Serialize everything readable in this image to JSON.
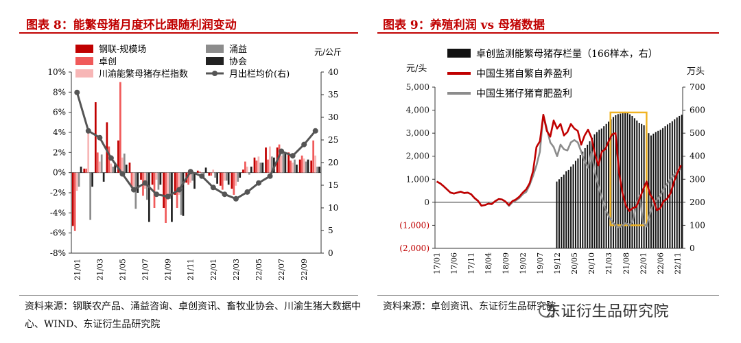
{
  "left_title": "图表 8：能繁母猪月度环比跟随利润变动",
  "right_title": "图表 9：养殖利润 vs 母猪数据",
  "left_source": "资料来源：钢联农产品、涌益咨询、卓创资讯、畜牧业协会、川渝生猪大数据中心、WIND、东证衍生品研究院",
  "right_source": "资料来源：卓创资讯、东证衍生品研究院",
  "watermark": "东证衍生品研究院",
  "colors": {
    "gl": "#c00000",
    "zc": "#f05a5a",
    "cy": "#f7b6b6",
    "yy": "#8c8c8c",
    "xh": "#222222",
    "price": "#555555",
    "zf": "#c00000",
    "zz": "#8c8c8c",
    "inv": "#111111",
    "box": "#f0b323"
  },
  "chart_data": [
    {
      "type": "bar+line",
      "title": "图表 8：能繁母猪月度环比跟随利润变动",
      "categories": [
        "21/01",
        "21/02",
        "21/03",
        "21/04",
        "21/05",
        "21/06",
        "21/07",
        "21/08",
        "21/09",
        "21/10",
        "21/11",
        "21/12",
        "22/01",
        "22/02",
        "22/03",
        "22/04",
        "22/05",
        "22/06",
        "22/07",
        "22/08",
        "22/09",
        "22/10"
      ],
      "x_tick_labels": [
        "21/01",
        "21/03",
        "21/05",
        "21/07",
        "21/09",
        "21/11",
        "22/01",
        "22/03",
        "22/05",
        "22/07",
        "22/09"
      ],
      "ylabel_left": "",
      "ylim_left": [
        -8,
        10
      ],
      "yticks_left": [
        "10%",
        "8%",
        "6%",
        "4%",
        "2%",
        "0%",
        "-2%",
        "-4%",
        "-6%",
        "-8%"
      ],
      "ylabel_right": "元/公斤",
      "ylim_right": [
        0,
        40
      ],
      "yticks_right": [
        "40",
        "35",
        "30",
        "25",
        "20",
        "15",
        "10",
        "5",
        "0"
      ],
      "series": [
        {
          "name": "钢联-规模场",
          "kind": "bar",
          "values": [
            -5.3,
            0.4,
            7.0,
            5.0,
            3.2,
            1.0,
            -0.7,
            -1.2,
            -3.5,
            -2.2,
            -1.0,
            0.2,
            -0.3,
            -1.3,
            -1.6,
            0.3,
            1.5,
            2.5,
            2.5,
            2.0,
            1.3,
            1.2
          ]
        },
        {
          "name": "卓创",
          "kind": "bar",
          "values": [
            -5.8,
            0.4,
            2.0,
            2.6,
            9.0,
            -1.5,
            -2.3,
            -3.5,
            -5.0,
            -3.5,
            -1.2,
            0.1,
            -0.3,
            -1.7,
            -2.2,
            1.1,
            1.2,
            1.3,
            2.8,
            1.2,
            1.7,
            3.2
          ]
        },
        {
          "name": "川渝能繁母猪存栏指数",
          "kind": "bar",
          "values": [
            -1.8,
            4.1,
            1.1,
            0.9,
            1.5,
            -1.4,
            -1.6,
            -0.7,
            -2.7,
            -2.2,
            -1.0,
            0.0,
            0.3,
            -0.8,
            -1.3,
            0.6,
            1.6,
            2.6,
            1.7,
            1.0,
            1.4,
            1.7
          ]
        },
        {
          "name": "涌益",
          "kind": "bar",
          "values": [
            -1.4,
            -4.7,
            1.8,
            0.6,
            1.9,
            -3.6,
            -2.7,
            -1.7,
            -2.6,
            -4.2,
            -0.8,
            -0.2,
            -0.5,
            -0.8,
            -0.9,
            -0.2,
            1.0,
            1.6,
            2.1,
            1.3,
            1.1,
            0.6
          ]
        },
        {
          "name": "协会",
          "kind": "bar",
          "values": [
            0.6,
            -1.4,
            -0.9,
            1.0,
            0.8,
            -2.0,
            -4.9,
            -1.2,
            -4.9,
            -4.3,
            -1.6,
            0.5,
            -1.1,
            -1.2,
            -0.5,
            0.6,
            1.0,
            1.5,
            2.0,
            0.8,
            1.3,
            0.6
          ]
        },
        {
          "name": "月出栏均价(右)",
          "kind": "line",
          "axis": "right",
          "values": [
            35.5,
            27.0,
            25.5,
            21.0,
            17.5,
            14.0,
            15.5,
            13.0,
            12.5,
            14.0,
            18.0,
            17.0,
            14.5,
            13.0,
            12.0,
            13.5,
            15.5,
            17.0,
            22.5,
            21.5,
            24.0,
            27.0
          ]
        }
      ]
    },
    {
      "type": "bar+line",
      "title": "图表 9：养殖利润 vs 母猪数据",
      "x_tick_labels": [
        "17/01",
        "17/06",
        "17/11",
        "18/04",
        "18/09",
        "19/02",
        "19/07",
        "19/12",
        "20/05",
        "20/10",
        "21/03",
        "21/08",
        "22/01",
        "22/06",
        "22/11"
      ],
      "ylabel_left": "元/头",
      "ylim_left": [
        -2000,
        5000
      ],
      "yticks_left": [
        "5,000",
        "4,000",
        "3,000",
        "2,000",
        "1,000",
        "0",
        "(1,000)",
        "(2,000)"
      ],
      "ylabel_right": "万头",
      "ylim_right": [
        0,
        700
      ],
      "yticks_right": [
        "700",
        "600",
        "500",
        "400",
        "300",
        "200",
        "100",
        "0"
      ],
      "highlight_box": {
        "x_from": "21/06",
        "x_to": "22/04",
        "y_from": 100,
        "y_to": 590
      },
      "series": [
        {
          "name": "卓创监测能繁母猪存栏量（166样本，右）",
          "kind": "bar",
          "axis": "right",
          "x_start": "19/12",
          "values": [
            290,
            300,
            310,
            320,
            335,
            340,
            355,
            365,
            380,
            390,
            405,
            420,
            435,
            450,
            465,
            480,
            495,
            505,
            515,
            520,
            530,
            540,
            550,
            560,
            570,
            578,
            583,
            585,
            590,
            593,
            588,
            582,
            575,
            565,
            555,
            545,
            540,
            535,
            530,
            500,
            490,
            498,
            505,
            510,
            515,
            522,
            530,
            538,
            545,
            552,
            560,
            568,
            575,
            580
          ]
        },
        {
          "name": "中国生猪自繁自养盈利",
          "kind": "line",
          "axis": "left",
          "x": [
            0,
            1,
            2,
            3,
            4,
            5,
            6,
            7,
            8,
            9,
            10,
            11,
            12,
            13,
            14,
            15,
            16,
            17,
            18,
            19,
            20,
            21,
            22,
            23,
            24,
            25,
            26,
            27,
            28,
            29,
            30,
            31,
            32,
            33,
            34,
            35,
            36,
            37,
            38,
            39,
            40,
            41,
            42,
            43,
            44,
            45,
            46,
            47,
            48,
            49,
            50,
            51,
            52,
            53,
            54,
            55,
            56,
            57,
            58,
            59,
            60,
            61,
            62,
            63,
            64,
            65,
            66,
            67,
            68,
            69,
            70,
            71
          ],
          "values": [
            900,
            820,
            700,
            560,
            420,
            380,
            420,
            460,
            400,
            420,
            350,
            180,
            60,
            -150,
            -120,
            -60,
            -80,
            50,
            140,
            120,
            30,
            -120,
            50,
            120,
            240,
            420,
            560,
            820,
            1350,
            2400,
            2650,
            3800,
            3100,
            2850,
            3550,
            3200,
            3400,
            2900,
            3050,
            3400,
            3200,
            3100,
            2500,
            2900,
            3150,
            2800,
            2100,
            1600,
            2200,
            2300,
            2650,
            2950,
            3000,
            1300,
            400,
            -150,
            -380,
            -250,
            -200,
            150,
            550,
            900,
            350,
            100,
            -350,
            -250,
            50,
            150,
            400,
            900,
            1300,
            1600
          ]
        },
        {
          "name": "中国生猪仔猪育肥盈利",
          "kind": "line",
          "axis": "left",
          "x": [
            0,
            1,
            2,
            3,
            4,
            5,
            6,
            7,
            8,
            9,
            10,
            11,
            12,
            13,
            14,
            15,
            16,
            17,
            18,
            19,
            20,
            21,
            22,
            23,
            24,
            25,
            26,
            27,
            28,
            29,
            30,
            31,
            32,
            33,
            34,
            35,
            36,
            37,
            38,
            39,
            40,
            41,
            42,
            43,
            44,
            45,
            46,
            47,
            48,
            49,
            50,
            51,
            52,
            53,
            54,
            55,
            56,
            57,
            58,
            59,
            60,
            61,
            62,
            63,
            64,
            65,
            66,
            67,
            68,
            69,
            70,
            71
          ],
          "values": [
            900,
            820,
            700,
            560,
            420,
            380,
            420,
            460,
            400,
            420,
            350,
            180,
            60,
            -150,
            -120,
            -60,
            -80,
            50,
            140,
            120,
            30,
            -160,
            0,
            80,
            180,
            350,
            450,
            750,
            1150,
            1600,
            2200,
            3800,
            3200,
            2600,
            2400,
            2000,
            2500,
            2300,
            2250,
            2600,
            2700,
            2600,
            2200,
            1800,
            1500,
            2200,
            1300,
            700,
            200,
            -300,
            -600,
            -850,
            -1000,
            -1100,
            -1000,
            -900,
            -1000,
            -800,
            -100,
            300,
            -900,
            -1050,
            -500,
            -50,
            100,
            300,
            600,
            800,
            1000,
            1200,
            1350,
            1450
          ]
        }
      ]
    }
  ]
}
